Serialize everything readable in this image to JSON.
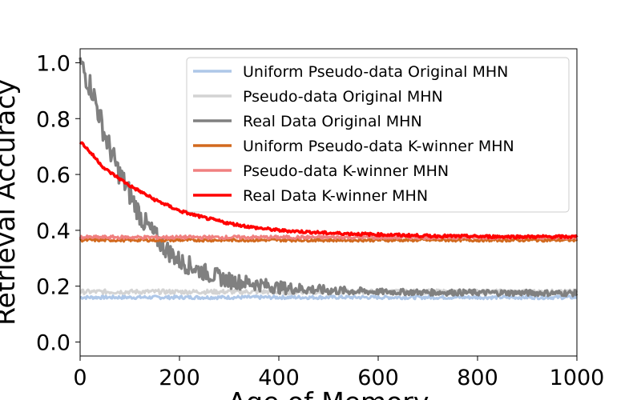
{
  "chart_data": {
    "type": "line",
    "xlabel": "Age of Memory",
    "ylabel": "Retrieval Accuracy",
    "xlim": [
      0,
      1000
    ],
    "ylim": [
      -0.05,
      1.05
    ],
    "x_ticks": [
      "0",
      "200",
      "400",
      "600",
      "800",
      "1000"
    ],
    "y_ticks": [
      "0.0",
      "0.2",
      "0.4",
      "0.6",
      "0.8",
      "1.0"
    ],
    "x_tick_values": [
      0,
      200,
      400,
      600,
      800,
      1000
    ],
    "y_tick_values": [
      0.0,
      0.2,
      0.4,
      0.6,
      0.8,
      1.0
    ],
    "grid": false,
    "legend_position": "top-right",
    "series": [
      {
        "name": "Uniform Pseudo-data Original MHN",
        "color": "#aec7e8",
        "x": [
          0,
          100,
          200,
          300,
          400,
          500,
          600,
          700,
          800,
          900,
          1000
        ],
        "y": [
          0.16,
          0.16,
          0.16,
          0.16,
          0.16,
          0.16,
          0.16,
          0.16,
          0.16,
          0.16,
          0.16
        ]
      },
      {
        "name": "Pseudo-data Original MHN",
        "color": "#d3d3d3",
        "x": [
          0,
          100,
          200,
          300,
          400,
          500,
          600,
          700,
          800,
          900,
          1000
        ],
        "y": [
          0.18,
          0.18,
          0.18,
          0.18,
          0.18,
          0.18,
          0.18,
          0.18,
          0.18,
          0.18,
          0.18
        ]
      },
      {
        "name": "Real Data Original MHN",
        "color": "#808080",
        "x": [
          0,
          25,
          50,
          75,
          100,
          125,
          150,
          175,
          200,
          250,
          300,
          350,
          400,
          450,
          500,
          600,
          700,
          800,
          900,
          1000
        ],
        "y": [
          1.0,
          0.9,
          0.74,
          0.62,
          0.53,
          0.44,
          0.38,
          0.33,
          0.29,
          0.25,
          0.22,
          0.21,
          0.195,
          0.19,
          0.185,
          0.18,
          0.178,
          0.177,
          0.176,
          0.175
        ]
      },
      {
        "name": "Uniform Pseudo-data K-winner MHN",
        "color": "#d2691e",
        "x": [
          0,
          100,
          200,
          300,
          400,
          500,
          600,
          700,
          800,
          900,
          1000
        ],
        "y": [
          0.365,
          0.365,
          0.365,
          0.365,
          0.365,
          0.365,
          0.365,
          0.365,
          0.365,
          0.365,
          0.365
        ]
      },
      {
        "name": "Pseudo-data K-winner MHN",
        "color": "#f08080",
        "x": [
          0,
          100,
          200,
          300,
          400,
          500,
          600,
          700,
          800,
          900,
          1000
        ],
        "y": [
          0.375,
          0.375,
          0.375,
          0.375,
          0.375,
          0.375,
          0.375,
          0.375,
          0.375,
          0.375,
          0.375
        ]
      },
      {
        "name": "Real Data K-winner MHN",
        "color": "#ff0000",
        "x": [
          0,
          50,
          100,
          150,
          200,
          250,
          300,
          350,
          400,
          450,
          500,
          600,
          700,
          800,
          900,
          1000
        ],
        "y": [
          0.72,
          0.62,
          0.56,
          0.51,
          0.47,
          0.445,
          0.425,
          0.41,
          0.4,
          0.395,
          0.39,
          0.385,
          0.38,
          0.378,
          0.377,
          0.377
        ]
      }
    ]
  }
}
